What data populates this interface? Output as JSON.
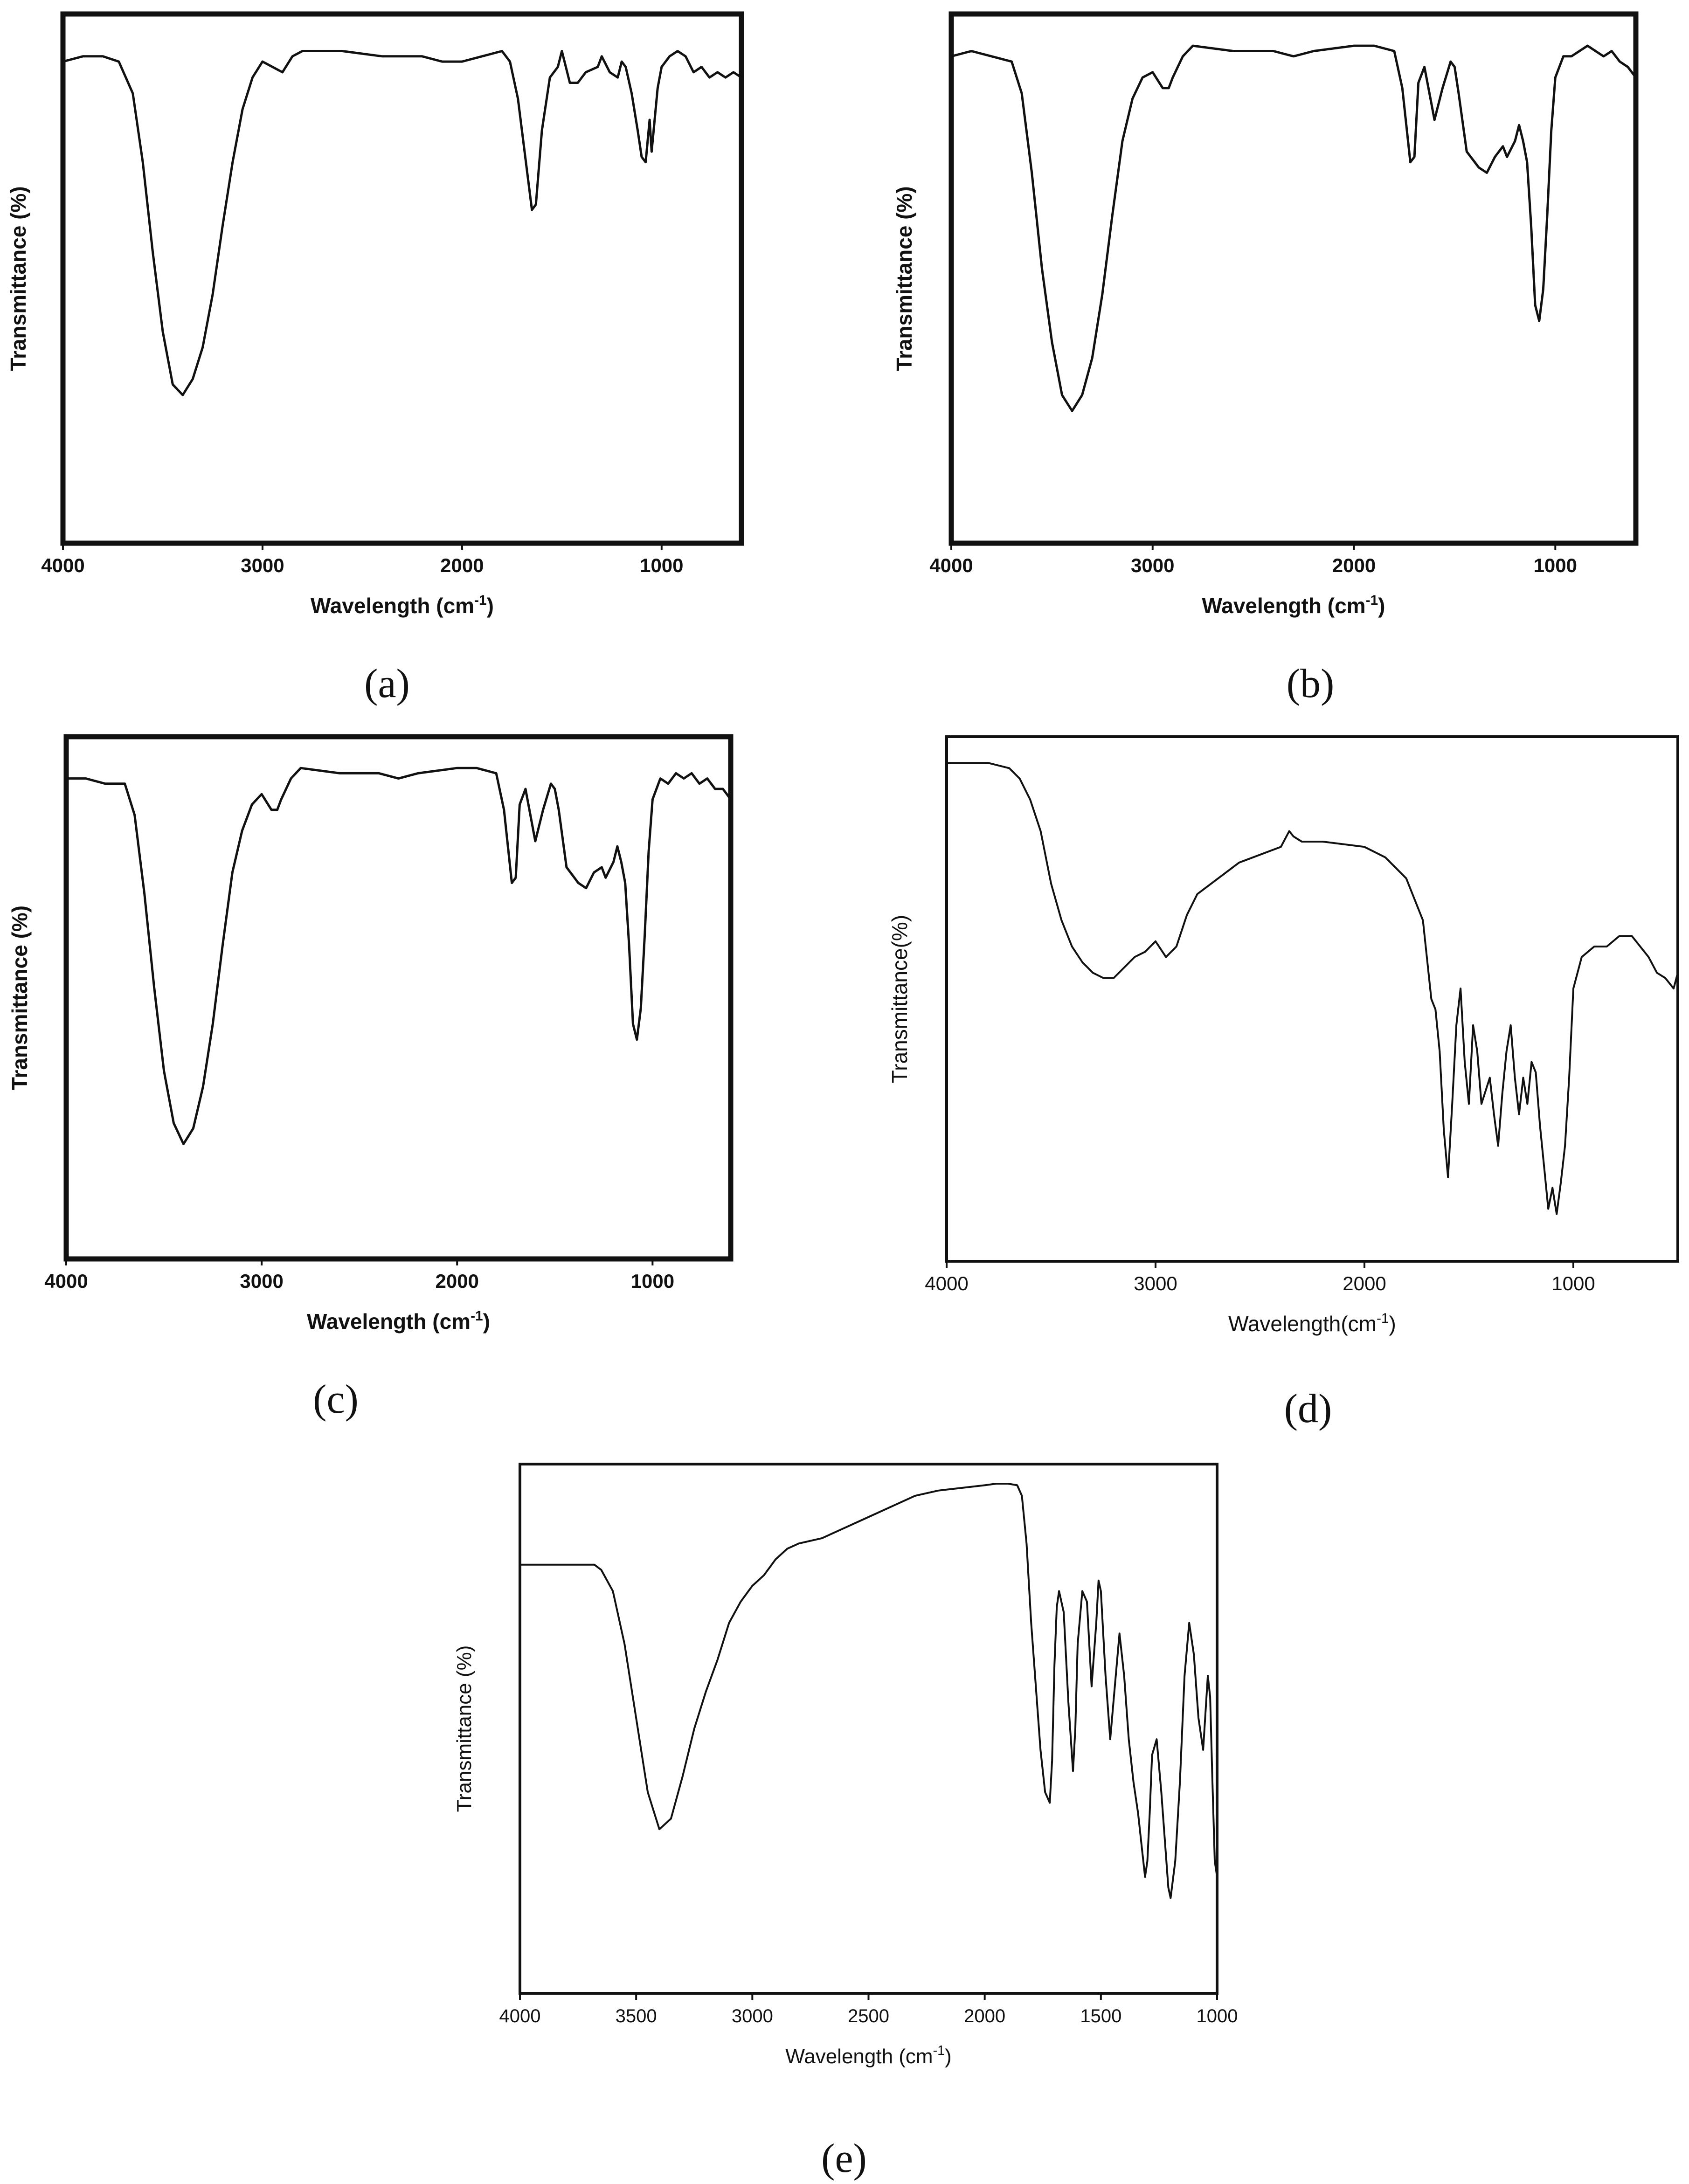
{
  "chart_data": [
    {
      "panel": "(a)",
      "type": "line",
      "xlabel": "Wavelength (cm",
      "xlabel_sup": "-1",
      "xlabel_tail": ")",
      "ylabel": "Transmittance (%)",
      "xlim": [
        4000,
        600
      ],
      "ylim": [
        0,
        100
      ],
      "xticks": [
        4000,
        3000,
        2000,
        1000
      ],
      "series": [
        {
          "x": [
            4000,
            3900,
            3800,
            3720,
            3650,
            3600,
            3550,
            3500,
            3450,
            3400,
            3350,
            3300,
            3250,
            3200,
            3150,
            3100,
            3050,
            3000,
            2950,
            2900,
            2850,
            2800,
            2600,
            2400,
            2200,
            2100,
            2000,
            1900,
            1800,
            1760,
            1720,
            1680,
            1650,
            1630,
            1600,
            1560,
            1520,
            1500,
            1460,
            1420,
            1380,
            1320,
            1300,
            1260,
            1220,
            1200,
            1180,
            1150,
            1120,
            1100,
            1080,
            1060,
            1050,
            1040,
            1020,
            1000,
            960,
            920,
            880,
            840,
            800,
            760,
            720,
            680,
            640,
            600
          ],
          "y": [
            91,
            92,
            92,
            91,
            85,
            72,
            55,
            40,
            30,
            28,
            31,
            37,
            47,
            60,
            72,
            82,
            88,
            91,
            90,
            89,
            92,
            93,
            93,
            92,
            92,
            91,
            91,
            92,
            93,
            91,
            84,
            72,
            63,
            64,
            78,
            88,
            90,
            93,
            87,
            87,
            89,
            90,
            92,
            89,
            88,
            91,
            90,
            85,
            78,
            73,
            72,
            80,
            74,
            78,
            86,
            90,
            92,
            93,
            92,
            89,
            90,
            88,
            89,
            88,
            89,
            88
          ]
        }
      ]
    },
    {
      "panel": "(b)",
      "type": "line",
      "xlabel": "Wavelength (cm",
      "xlabel_sup": "-1",
      "xlabel_tail": ")",
      "ylabel": "Transmittance (%)",
      "xlim": [
        4000,
        600
      ],
      "ylim": [
        0,
        100
      ],
      "xticks": [
        4000,
        3000,
        2000,
        1000
      ],
      "series": [
        {
          "x": [
            4000,
            3900,
            3800,
            3700,
            3650,
            3600,
            3550,
            3500,
            3450,
            3400,
            3350,
            3300,
            3250,
            3200,
            3150,
            3100,
            3050,
            3000,
            2950,
            2920,
            2900,
            2850,
            2800,
            2600,
            2400,
            2300,
            2200,
            2000,
            1900,
            1800,
            1760,
            1720,
            1700,
            1680,
            1650,
            1620,
            1600,
            1560,
            1520,
            1500,
            1480,
            1440,
            1400,
            1380,
            1340,
            1300,
            1260,
            1240,
            1200,
            1180,
            1160,
            1140,
            1120,
            1100,
            1080,
            1060,
            1040,
            1020,
            1000,
            960,
            920,
            880,
            840,
            800,
            760,
            720,
            680,
            640,
            600
          ],
          "y": [
            92,
            93,
            92,
            91,
            85,
            70,
            52,
            38,
            28,
            25,
            28,
            35,
            47,
            62,
            76,
            84,
            88,
            89,
            86,
            86,
            88,
            92,
            94,
            93,
            93,
            92,
            93,
            94,
            94,
            93,
            86,
            72,
            73,
            87,
            90,
            84,
            80,
            86,
            91,
            90,
            85,
            74,
            72,
            71,
            70,
            73,
            75,
            73,
            76,
            79,
            76,
            72,
            60,
            45,
            42,
            48,
            62,
            78,
            88,
            92,
            92,
            93,
            94,
            93,
            92,
            93,
            91,
            90,
            88
          ]
        }
      ]
    },
    {
      "panel": "(c)",
      "type": "line",
      "xlabel": "Wavelength (cm",
      "xlabel_sup": "-1",
      "xlabel_tail": ")",
      "ylabel": "Transmittance (%)",
      "xlim": [
        4000,
        600
      ],
      "ylim": [
        0,
        100
      ],
      "xticks": [
        4000,
        3000,
        2000,
        1000
      ],
      "series": [
        {
          "x": [
            4000,
            3900,
            3800,
            3700,
            3650,
            3600,
            3550,
            3500,
            3450,
            3400,
            3350,
            3300,
            3250,
            3200,
            3150,
            3100,
            3050,
            3000,
            2950,
            2920,
            2900,
            2850,
            2800,
            2600,
            2400,
            2300,
            2200,
            2000,
            1900,
            1800,
            1760,
            1720,
            1700,
            1680,
            1650,
            1620,
            1600,
            1560,
            1520,
            1500,
            1480,
            1440,
            1400,
            1380,
            1340,
            1300,
            1260,
            1240,
            1200,
            1180,
            1160,
            1140,
            1120,
            1100,
            1080,
            1060,
            1040,
            1020,
            1000,
            960,
            920,
            880,
            840,
            800,
            760,
            720,
            680,
            640,
            600
          ],
          "y": [
            92,
            92,
            91,
            91,
            85,
            70,
            52,
            36,
            26,
            22,
            25,
            33,
            45,
            60,
            74,
            82,
            87,
            89,
            86,
            86,
            88,
            92,
            94,
            93,
            93,
            92,
            93,
            94,
            94,
            93,
            86,
            72,
            73,
            87,
            90,
            84,
            80,
            86,
            91,
            90,
            86,
            75,
            73,
            72,
            71,
            74,
            75,
            73,
            76,
            79,
            76,
            72,
            60,
            45,
            42,
            48,
            62,
            78,
            88,
            92,
            91,
            93,
            92,
            93,
            91,
            92,
            90,
            90,
            88
          ]
        }
      ]
    },
    {
      "panel": "(d)",
      "type": "line",
      "xlabel": "Wavelength(cm",
      "xlabel_sup": "-1",
      "xlabel_tail": ")",
      "ylabel": "Transmittance(%)",
      "xlim": [
        4000,
        500
      ],
      "ylim": [
        0,
        100
      ],
      "xticks": [
        4000,
        3000,
        2000,
        1000
      ],
      "series": [
        {
          "x": [
            4000,
            3900,
            3800,
            3700,
            3650,
            3600,
            3550,
            3500,
            3450,
            3400,
            3350,
            3300,
            3250,
            3200,
            3150,
            3100,
            3050,
            3000,
            2950,
            2900,
            2850,
            2800,
            2600,
            2400,
            2360,
            2340,
            2300,
            2200,
            2000,
            1900,
            1800,
            1720,
            1680,
            1660,
            1640,
            1620,
            1600,
            1580,
            1560,
            1540,
            1520,
            1500,
            1480,
            1460,
            1440,
            1400,
            1380,
            1360,
            1340,
            1320,
            1300,
            1280,
            1260,
            1240,
            1220,
            1200,
            1180,
            1160,
            1140,
            1120,
            1100,
            1080,
            1060,
            1040,
            1020,
            1000,
            960,
            900,
            840,
            780,
            720,
            680,
            640,
            600,
            560,
            520,
            500
          ],
          "y": [
            95,
            95,
            95,
            94,
            92,
            88,
            82,
            72,
            65,
            60,
            57,
            55,
            54,
            54,
            56,
            58,
            59,
            61,
            58,
            60,
            66,
            70,
            76,
            79,
            82,
            81,
            80,
            80,
            79,
            77,
            73,
            65,
            50,
            48,
            40,
            25,
            16,
            30,
            45,
            52,
            38,
            30,
            45,
            40,
            30,
            35,
            28,
            22,
            32,
            40,
            45,
            35,
            28,
            35,
            30,
            38,
            36,
            26,
            18,
            10,
            14,
            9,
            15,
            22,
            35,
            52,
            58,
            60,
            60,
            62,
            62,
            60,
            58,
            55,
            54,
            52,
            55
          ]
        }
      ]
    },
    {
      "panel": "(e)",
      "type": "line",
      "xlabel": "Wavelength (cm",
      "xlabel_sup": "-1",
      "xlabel_tail": ")",
      "ylabel": "Transmittance (%)",
      "xlim": [
        4000,
        1000
      ],
      "ylim": [
        0,
        100
      ],
      "xticks": [
        4000,
        3500,
        3000,
        2500,
        2000,
        1500,
        1000
      ],
      "series": [
        {
          "x": [
            4000,
            3900,
            3800,
            3700,
            3680,
            3650,
            3600,
            3550,
            3500,
            3450,
            3400,
            3350,
            3300,
            3250,
            3200,
            3150,
            3100,
            3050,
            3000,
            2950,
            2900,
            2850,
            2800,
            2700,
            2600,
            2500,
            2400,
            2300,
            2200,
            2100,
            2000,
            1950,
            1900,
            1860,
            1840,
            1820,
            1800,
            1780,
            1760,
            1740,
            1720,
            1710,
            1700,
            1690,
            1680,
            1660,
            1640,
            1620,
            1610,
            1600,
            1580,
            1560,
            1540,
            1520,
            1510,
            1500,
            1480,
            1460,
            1440,
            1420,
            1400,
            1380,
            1360,
            1340,
            1320,
            1310,
            1300,
            1290,
            1280,
            1260,
            1240,
            1220,
            1210,
            1200,
            1180,
            1160,
            1140,
            1120,
            1100,
            1080,
            1060,
            1040,
            1030,
            1020,
            1010,
            1000
          ],
          "y": [
            81,
            81,
            81,
            81,
            81,
            80,
            76,
            66,
            52,
            38,
            31,
            33,
            41,
            50,
            57,
            63,
            70,
            74,
            77,
            79,
            82,
            84,
            85,
            86,
            88,
            90,
            92,
            94,
            95,
            95.5,
            96,
            96.3,
            96.3,
            96,
            94,
            85,
            70,
            58,
            46,
            38,
            36,
            44,
            62,
            73,
            76,
            72,
            55,
            42,
            50,
            66,
            76,
            74,
            58,
            70,
            78,
            76,
            60,
            48,
            58,
            68,
            60,
            48,
            40,
            34,
            26,
            22,
            25,
            34,
            45,
            48,
            38,
            26,
            20,
            18,
            25,
            40,
            60,
            70,
            64,
            52,
            46,
            60,
            56,
            40,
            25,
            22
          ]
        }
      ]
    }
  ]
}
